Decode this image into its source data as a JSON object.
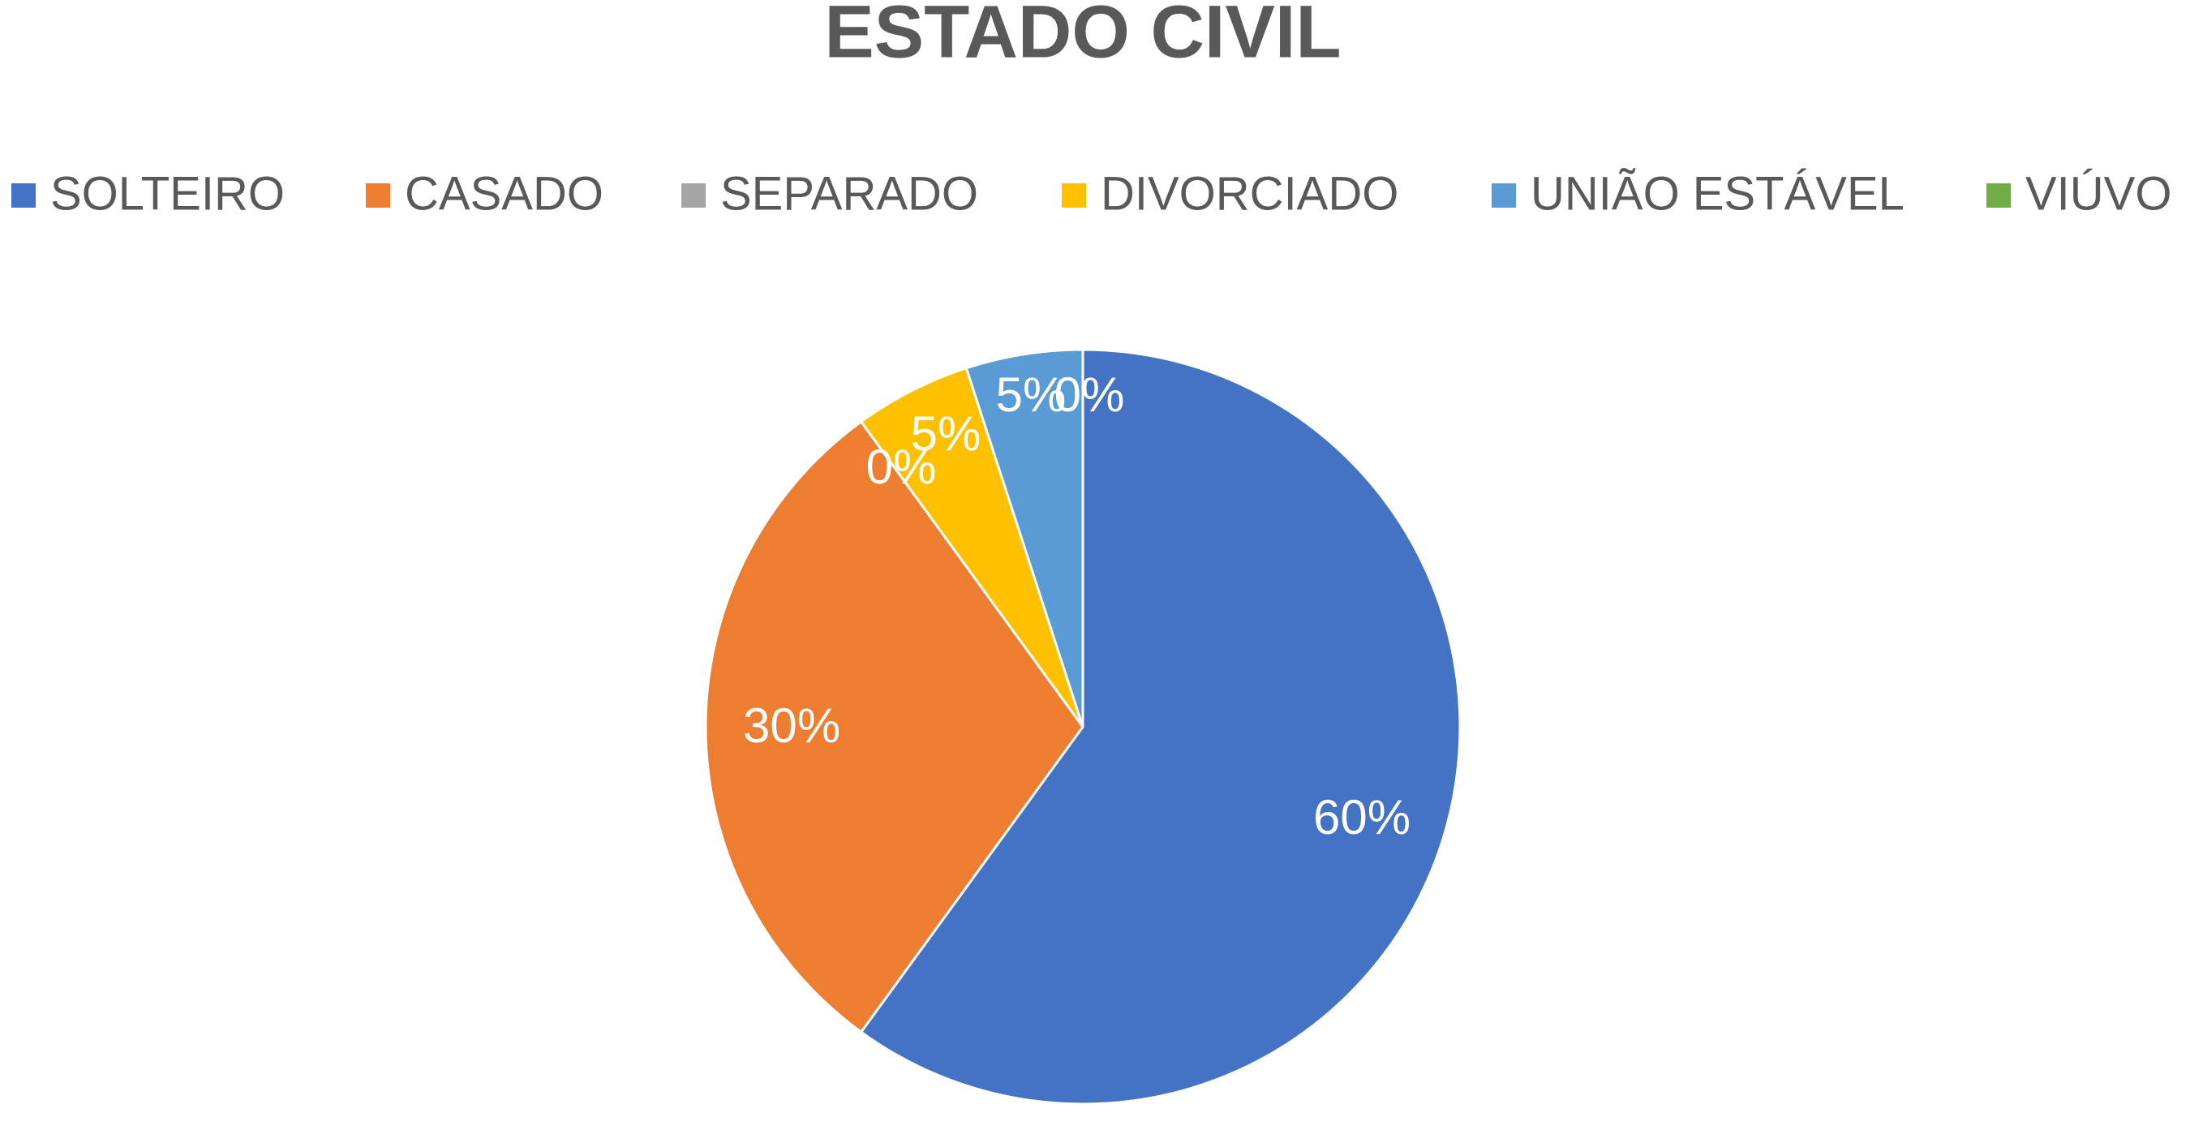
{
  "chart_data": {
    "type": "pie",
    "title": "ESTADO CIVIL",
    "categories": [
      "SOLTEIRO",
      "CASADO",
      "SEPARADO",
      "DIVORCIADO",
      "UNIÃO ESTÁVEL",
      "VIÚVO"
    ],
    "values": [
      60,
      30,
      0,
      5,
      5,
      0
    ],
    "value_labels": [
      "60%",
      "30%",
      "0%",
      "5%",
      "5%",
      "0%"
    ],
    "colors": [
      "#4472c4",
      "#ed7d31",
      "#a5a5a5",
      "#ffc000",
      "#5b9bd5",
      "#70ad47"
    ],
    "legend": "top"
  }
}
